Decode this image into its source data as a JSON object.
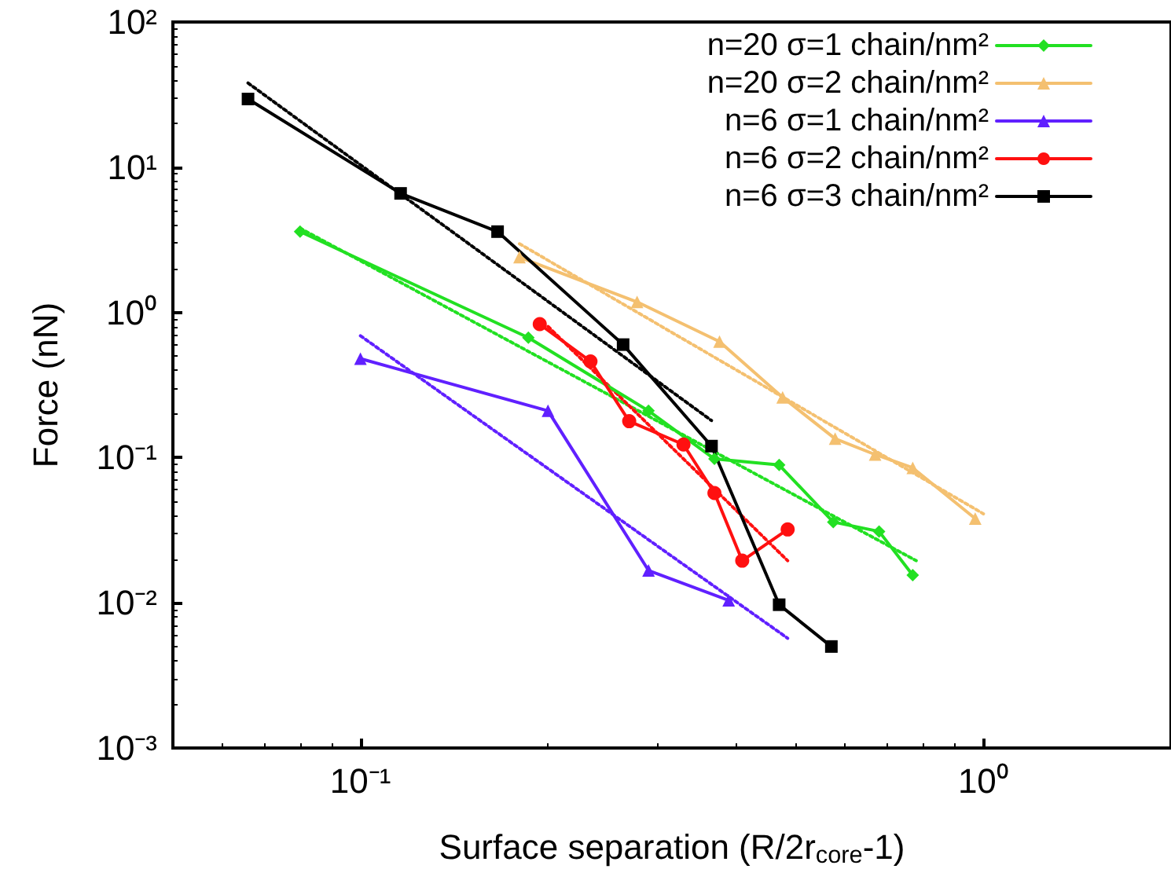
{
  "chart_data": {
    "type": "line",
    "xlabel": "Surface separation (R/2r$_{core}$-1)",
    "ylabel": "Force (nN)",
    "log": "xy",
    "grid": false,
    "legend": "top right",
    "xlim": [
      0.05,
      2
    ],
    "xticks": [
      {
        "value": 0.1,
        "label": "10⁻¹"
      },
      {
        "value": 1,
        "label": "10⁰"
      }
    ],
    "ylim": [
      0.001,
      100
    ],
    "yticks": [
      {
        "value": 0.001,
        "label": "10⁻³"
      },
      {
        "value": 0.01,
        "label": "10⁻²"
      },
      {
        "value": 0.1,
        "label": "10⁻¹"
      },
      {
        "value": 1,
        "label": "10⁰"
      },
      {
        "value": 10,
        "label": "10¹"
      },
      {
        "value": 100,
        "label": "10²"
      }
    ],
    "series": [
      {
        "name": "n=20 σ=1 chain/nm²",
        "color": "#22e022",
        "marker": "diamond",
        "line_style": "solid",
        "x": [
          0.08,
          0.186,
          0.29,
          0.37,
          0.47,
          0.574,
          0.68,
          0.77
        ],
        "values": [
          3.6,
          0.67,
          0.21,
          0.098,
          0.089,
          0.036,
          0.031,
          0.0155
        ]
      },
      {
        "name": "n=20 σ=2 chain/nm²",
        "color": "#f4c070",
        "marker": "triangle",
        "line_style": "solid",
        "x": [
          0.18,
          0.278,
          0.377,
          0.476,
          0.578,
          0.67,
          0.77,
          0.97
        ],
        "values": [
          2.4,
          1.18,
          0.63,
          0.26,
          0.135,
          0.105,
          0.085,
          0.038
        ]
      },
      {
        "name": "n=6 σ=1 chain/nm²",
        "color": "#6020ff",
        "marker": "triangle",
        "line_style": "solid",
        "x": [
          0.1,
          0.2,
          0.29,
          0.39
        ],
        "values": [
          0.48,
          0.21,
          0.0167,
          0.0104
        ]
      },
      {
        "name": "n=6 σ=2 chain/nm²",
        "color": "#ff1010",
        "marker": "circle",
        "line_style": "solid",
        "x": [
          0.194,
          0.234,
          0.27,
          0.33,
          0.37,
          0.41,
          0.485
        ],
        "values": [
          0.83,
          0.46,
          0.178,
          0.123,
          0.057,
          0.0195,
          0.032
        ]
      },
      {
        "name": "n=6 σ=3 chain/nm²",
        "color": "#000000",
        "marker": "square",
        "line_style": "solid",
        "x": [
          0.066,
          0.116,
          0.166,
          0.264,
          0.366,
          0.47,
          0.57
        ],
        "values": [
          29.5,
          6.6,
          3.6,
          0.6,
          0.12,
          0.0097,
          0.005
        ]
      },
      {
        "color": "#22e022",
        "type": "line",
        "marker": "none",
        "line_style": "dotted",
        "x": [
          0.08,
          0.78
        ],
        "values": [
          3.8,
          0.0195
        ]
      },
      {
        "color": "#f4c070",
        "type": "line",
        "marker": "none",
        "line_style": "dotted",
        "x": [
          0.18,
          1.0
        ],
        "values": [
          2.97,
          0.041
        ]
      },
      {
        "color": "#6020ff",
        "type": "line",
        "marker": "none",
        "line_style": "dotted",
        "x": [
          0.1,
          0.485
        ],
        "values": [
          0.69,
          0.0057
        ]
      },
      {
        "color": "#ff1010",
        "type": "line",
        "marker": "none",
        "line_style": "dotted",
        "x": [
          0.2,
          0.485
        ],
        "values": [
          0.8,
          0.0195
        ]
      },
      {
        "color": "#000000",
        "type": "line",
        "marker": "none",
        "line_style": "dotted",
        "x": [
          0.066,
          0.366
        ],
        "values": [
          38,
          0.18
        ]
      }
    ]
  }
}
